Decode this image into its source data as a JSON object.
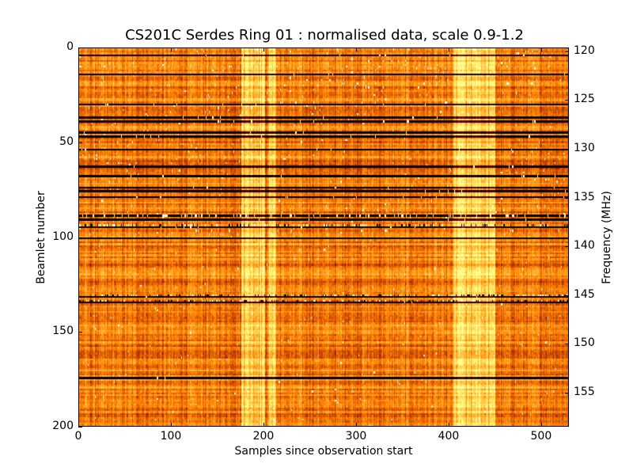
{
  "chart_data": {
    "type": "heatmap",
    "title": "CS201C Serdes Ring 01 : normalised data, scale 0.9-1.2",
    "xlabel": "Samples since observation start",
    "ylabel": "Beamlet number",
    "y2label": "Frequency (MHz)",
    "xlim": [
      0,
      530
    ],
    "ylim": [
      200,
      0
    ],
    "y2lim": [
      119.6,
      158.5
    ],
    "xticks": [
      0,
      100,
      200,
      300,
      400,
      500
    ],
    "yticks": [
      0,
      50,
      100,
      150,
      200
    ],
    "y2ticks": [
      120,
      125,
      130,
      135,
      140,
      145,
      150,
      155
    ],
    "color_scale": [
      0.9,
      1.2
    ],
    "colormap": "afmhot",
    "dark_beamlet_rows": [
      3,
      13,
      29,
      36,
      38,
      44,
      46,
      53,
      62,
      67,
      73,
      75,
      78,
      88,
      90,
      94,
      100,
      131,
      134,
      174
    ],
    "bright_sample_bands": [
      [
        175,
        200
      ],
      [
        205,
        212
      ],
      [
        405,
        450
      ]
    ],
    "noisy_beamlet_rows": [
      88,
      93,
      130,
      133
    ]
  }
}
